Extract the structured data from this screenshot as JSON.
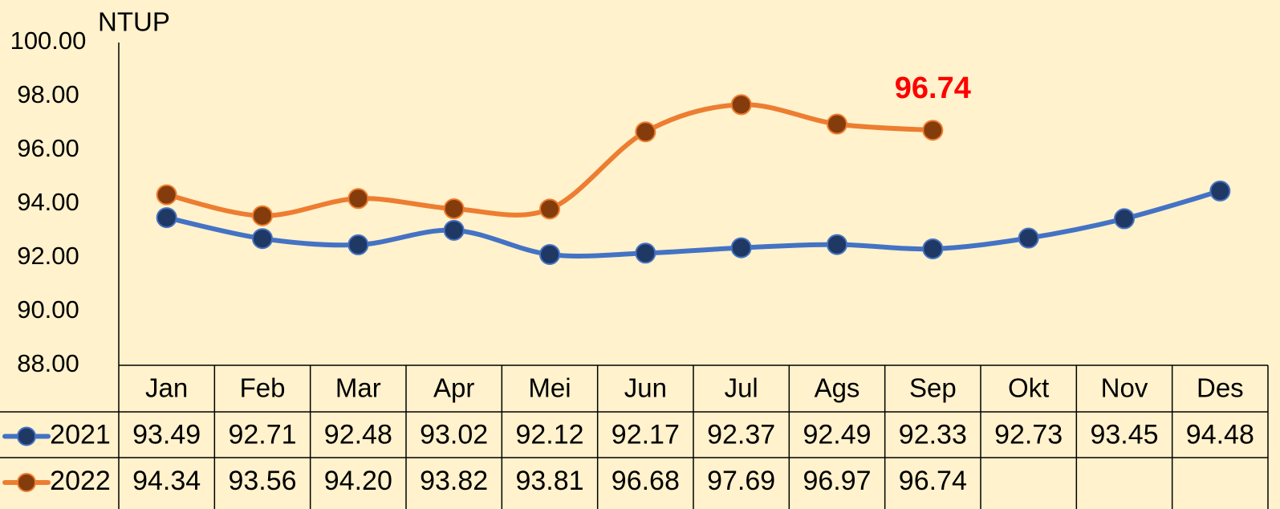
{
  "chart_data": {
    "type": "line",
    "y_label": "NTUP",
    "categories": [
      "Jan",
      "Feb",
      "Mar",
      "Apr",
      "Mei",
      "Jun",
      "Jul",
      "Ags",
      "Sep",
      "Okt",
      "Nov",
      "Des"
    ],
    "series": [
      {
        "name": "2021",
        "color": "#4472c4",
        "marker_color": "#1f3864",
        "values": [
          93.49,
          92.71,
          92.48,
          93.02,
          92.12,
          92.17,
          92.37,
          92.49,
          92.33,
          92.73,
          93.45,
          94.48
        ],
        "value_labels": [
          "93.49",
          "92.71",
          "92.48",
          "93.02",
          "92.12",
          "92.17",
          "92.37",
          "92.49",
          "92.33",
          "92.73",
          "93.45",
          "94.48"
        ]
      },
      {
        "name": "2022",
        "color": "#ed7d31",
        "marker_color": "#843c0c",
        "values": [
          94.34,
          93.56,
          94.2,
          93.82,
          93.81,
          96.68,
          97.69,
          96.97,
          96.74,
          null,
          null,
          null
        ],
        "value_labels": [
          "94.34",
          "93.56",
          "94.20",
          "93.82",
          "93.81",
          "96.68",
          "97.69",
          "96.97",
          "96.74",
          null,
          null,
          null
        ]
      }
    ],
    "annotation": {
      "text": "96.74",
      "series": 1,
      "index": 8,
      "color": "#ff0000"
    },
    "ylim": [
      88,
      100
    ],
    "yticks": [
      {
        "value": 88,
        "label": "88.00"
      },
      {
        "value": 90,
        "label": "90.00"
      },
      {
        "value": 92,
        "label": "92.00"
      },
      {
        "value": 94,
        "label": "94.00"
      },
      {
        "value": 96,
        "label": "96.00"
      },
      {
        "value": 98,
        "label": "98.00"
      },
      {
        "value": 100,
        "label": "100.00"
      }
    ],
    "smooth": true
  }
}
